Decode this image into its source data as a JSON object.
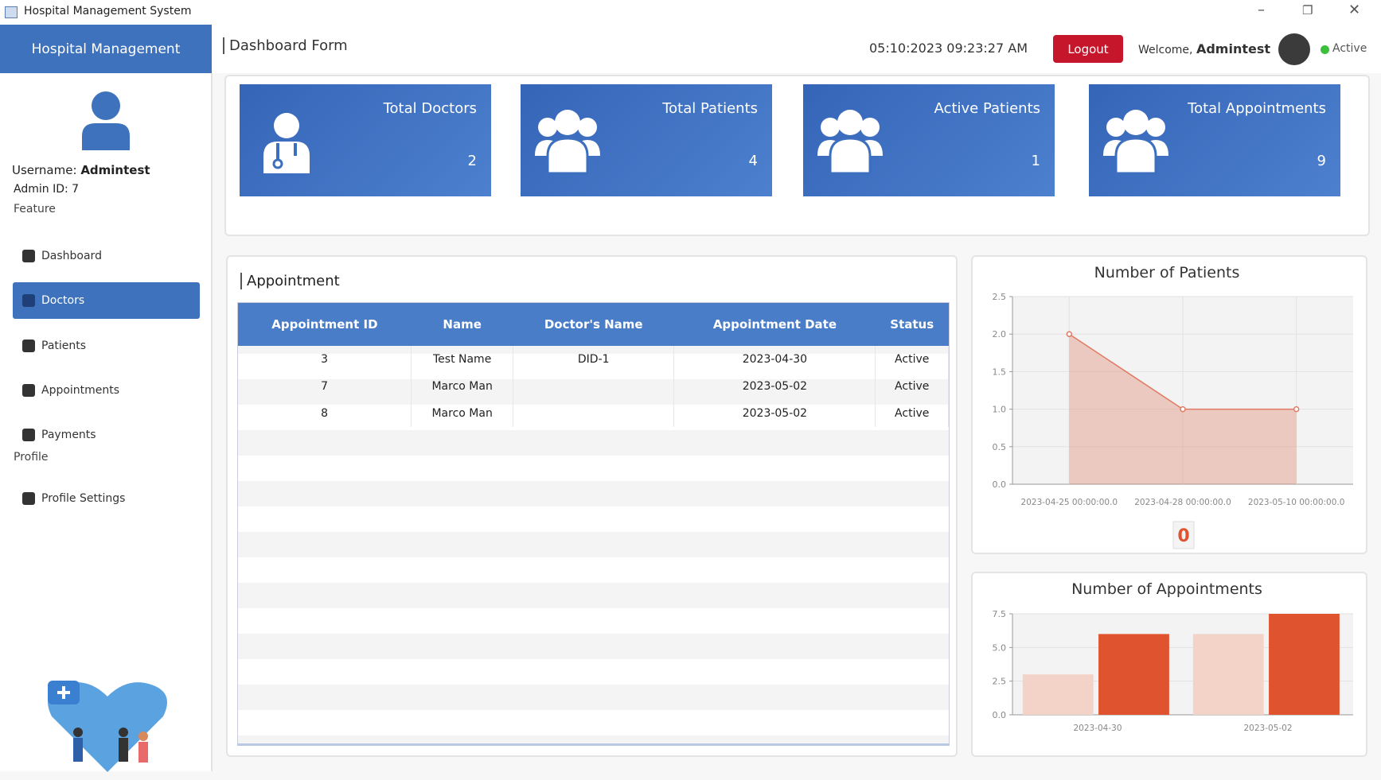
{
  "window": {
    "title": "Hospital Management System"
  },
  "sidebar": {
    "brand": "Hospital Management",
    "username_label": "Username:",
    "username": "Admintest",
    "admin_id_label": "Admin ID:",
    "admin_id": "7",
    "sections": [
      {
        "title": "Feature",
        "items": [
          "Dashboard",
          "Doctors",
          "Patients",
          "Appointments",
          "Payments"
        ]
      },
      {
        "title": "Profile",
        "items": [
          "Profile Settings"
        ]
      }
    ]
  },
  "header": {
    "title": "Dashboard Form",
    "datetime": "05:10:2023 09:23:27 AM",
    "logout": "Logout",
    "welcome": "Welcome,",
    "user": "Admintest",
    "status": "Active"
  },
  "cards": [
    {
      "label": "Total Doctors",
      "value": "2"
    },
    {
      "label": "Total Patients",
      "value": "4"
    },
    {
      "label": "Active Patients",
      "value": "1"
    },
    {
      "label": "Total Appointments",
      "value": "9"
    }
  ],
  "appointment": {
    "title": "Appointment",
    "columns": [
      "Appointment ID",
      "Name",
      "Doctor's Name",
      "Appointment Date",
      "Status"
    ],
    "rows": [
      [
        "3",
        "Test Name",
        "DID-1",
        "2023-04-30",
        "Active"
      ],
      [
        "7",
        "Marco Man",
        "",
        "2023-05-02",
        "Active"
      ],
      [
        "8",
        "Marco Man",
        "",
        "2023-05-02",
        "Active"
      ]
    ]
  },
  "patients_chart": {
    "type": "line",
    "title": "Number of Patients",
    "categories": [
      "2023-04-25 00:00:00.0",
      "2023-04-28 00:00:00.0",
      "2023-05-10 00:00:00.0"
    ],
    "values": [
      2,
      1,
      1
    ],
    "color": "#e07a62",
    "ylim": [
      0,
      2.5
    ],
    "yticks": [
      {
        "value": 0,
        "label": "0.0"
      },
      {
        "value": 0.5,
        "label": "0.5"
      },
      {
        "value": 1,
        "label": "1.0"
      },
      {
        "value": 1.5,
        "label": "1.5"
      },
      {
        "value": 2,
        "label": "2.0"
      },
      {
        "value": 2.5,
        "label": "2.5"
      }
    ],
    "grid": true,
    "counter": "0"
  },
  "appointments_chart": {
    "type": "bar",
    "title": "Number of Appointments",
    "categories": [
      "2023-04-30",
      "2023-05-02"
    ],
    "series": [
      {
        "color": "#f3d2c8",
        "values": [
          3,
          6
        ]
      },
      {
        "color": "#e0532f",
        "values": [
          6,
          7.5
        ]
      }
    ],
    "ylim": [
      0,
      7.5
    ],
    "yticks": [
      {
        "value": 0,
        "label": "0.0"
      },
      {
        "value": 2.5,
        "label": "2.5"
      },
      {
        "value": 5,
        "label": "5.0"
      },
      {
        "value": 7.5,
        "label": "7.5"
      }
    ],
    "grid": true
  }
}
